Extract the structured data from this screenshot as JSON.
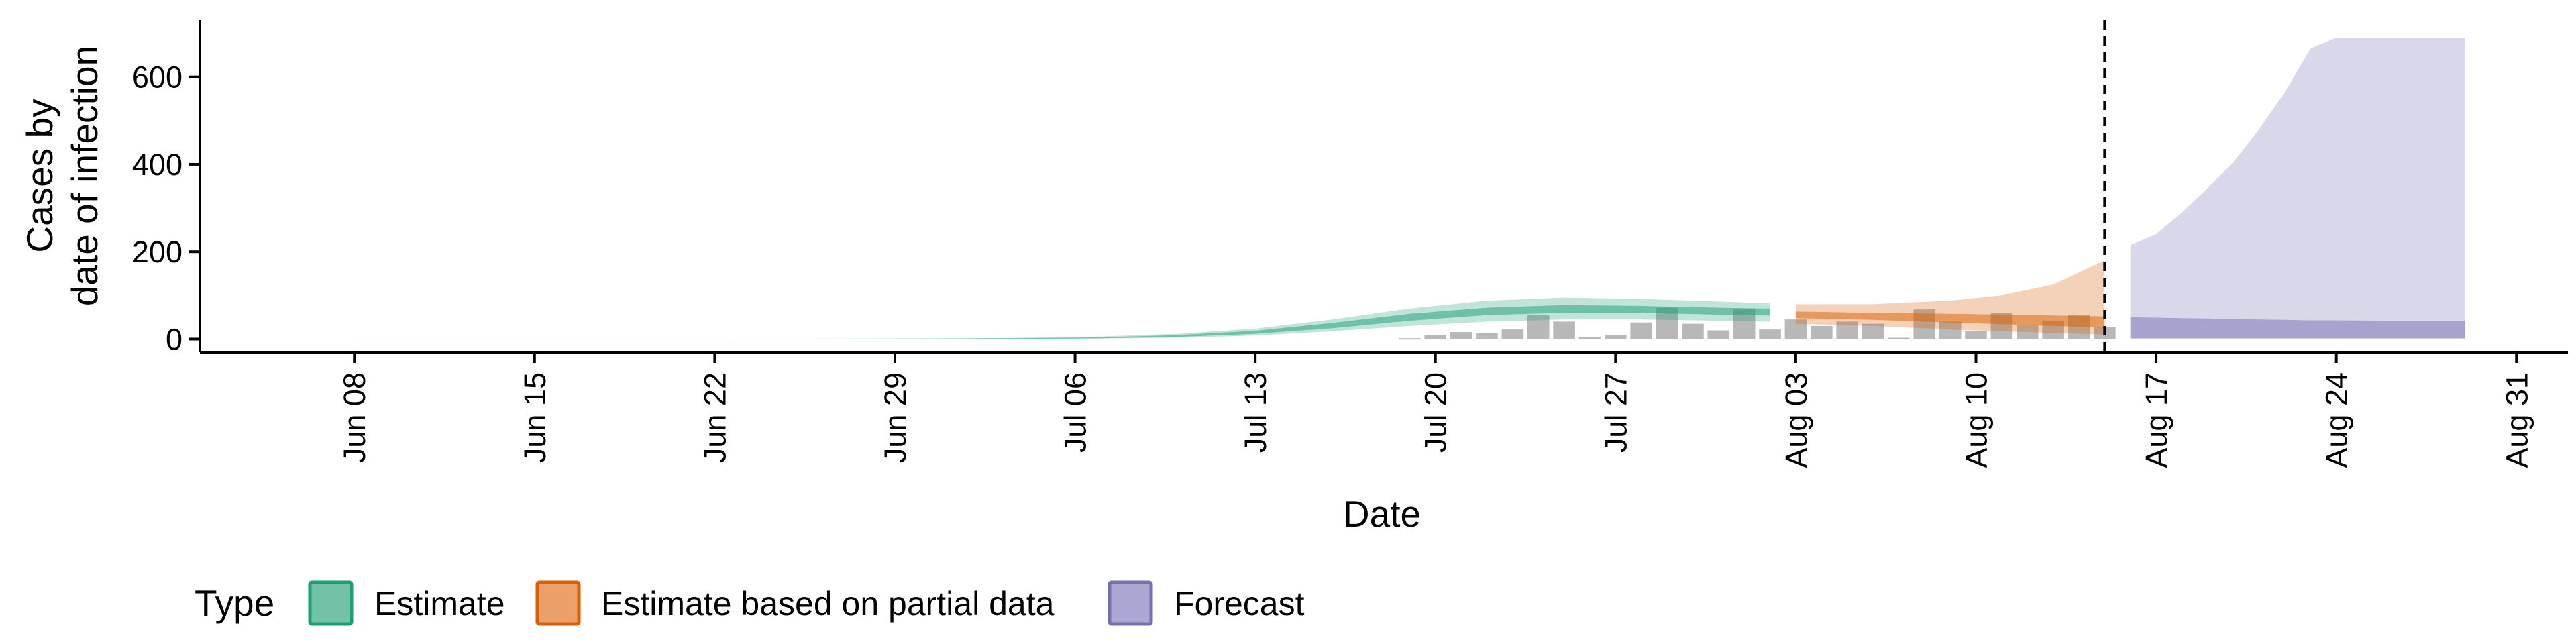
{
  "chart_data": {
    "type": "area",
    "xlabel": "Date",
    "ylabel": [
      "Cases by",
      "date of infection"
    ],
    "x_range": [
      "2020-06-02",
      "2020-09-02"
    ],
    "ylim": [
      -30,
      730
    ],
    "y_ticks": [
      0,
      200,
      400,
      600
    ],
    "x_ticks": [
      {
        "date": "2020-06-08",
        "label": "Jun 08"
      },
      {
        "date": "2020-06-15",
        "label": "Jun 15"
      },
      {
        "date": "2020-06-22",
        "label": "Jun 22"
      },
      {
        "date": "2020-06-29",
        "label": "Jun 29"
      },
      {
        "date": "2020-07-06",
        "label": "Jul 06"
      },
      {
        "date": "2020-07-13",
        "label": "Jul 13"
      },
      {
        "date": "2020-07-20",
        "label": "Jul 20"
      },
      {
        "date": "2020-07-27",
        "label": "Jul 27"
      },
      {
        "date": "2020-08-03",
        "label": "Aug 03"
      },
      {
        "date": "2020-08-10",
        "label": "Aug 10"
      },
      {
        "date": "2020-08-17",
        "label": "Aug 17"
      },
      {
        "date": "2020-08-24",
        "label": "Aug 24"
      },
      {
        "date": "2020-08-31",
        "label": "Aug 31"
      }
    ],
    "vline_date": "2020-08-15",
    "grid": false,
    "legend": {
      "position": "bottom",
      "title": "Type",
      "items": [
        {
          "label": "Estimate",
          "fill": "#73c2a7",
          "stroke": "#1b9e77"
        },
        {
          "label": "Estimate based on partial data",
          "fill": "#eba06a",
          "stroke": "#d95f02"
        },
        {
          "label": "Forecast",
          "fill": "#aca7d2",
          "stroke": "#7570b3"
        }
      ]
    },
    "observed_cases": {
      "color": "#a0a0a0",
      "points": [
        {
          "date": "2020-07-19",
          "y": 2
        },
        {
          "date": "2020-07-20",
          "y": 10
        },
        {
          "date": "2020-07-21",
          "y": 16
        },
        {
          "date": "2020-07-22",
          "y": 14
        },
        {
          "date": "2020-07-23",
          "y": 22
        },
        {
          "date": "2020-07-24",
          "y": 55
        },
        {
          "date": "2020-07-25",
          "y": 40
        },
        {
          "date": "2020-07-26",
          "y": 5
        },
        {
          "date": "2020-07-27",
          "y": 10
        },
        {
          "date": "2020-07-28",
          "y": 38
        },
        {
          "date": "2020-07-29",
          "y": 72
        },
        {
          "date": "2020-07-30",
          "y": 35
        },
        {
          "date": "2020-07-31",
          "y": 20
        },
        {
          "date": "2020-08-01",
          "y": 68
        },
        {
          "date": "2020-08-02",
          "y": 22
        },
        {
          "date": "2020-08-03",
          "y": 45
        },
        {
          "date": "2020-08-04",
          "y": 30
        },
        {
          "date": "2020-08-05",
          "y": 40
        },
        {
          "date": "2020-08-06",
          "y": 35
        },
        {
          "date": "2020-08-07",
          "y": 3
        },
        {
          "date": "2020-08-08",
          "y": 68
        },
        {
          "date": "2020-08-09",
          "y": 40
        },
        {
          "date": "2020-08-10",
          "y": 18
        },
        {
          "date": "2020-08-11",
          "y": 60
        },
        {
          "date": "2020-08-12",
          "y": 32
        },
        {
          "date": "2020-08-13",
          "y": 42
        },
        {
          "date": "2020-08-14",
          "y": 55
        },
        {
          "date": "2020-08-15",
          "y": 28
        }
      ]
    },
    "series": [
      {
        "name": "Estimate",
        "fill": "#1b9e77",
        "points": [
          {
            "date": "2020-06-06",
            "outer": [
              0,
              0
            ],
            "inner": [
              0,
              0
            ]
          },
          {
            "date": "2020-06-20",
            "outer": [
              0,
              0.5
            ],
            "inner": [
              0,
              0.3
            ]
          },
          {
            "date": "2020-06-30",
            "outer": [
              0,
              1
            ],
            "inner": [
              0,
              1
            ]
          },
          {
            "date": "2020-07-04",
            "outer": [
              0,
              3
            ],
            "inner": [
              0.5,
              2
            ]
          },
          {
            "date": "2020-07-07",
            "outer": [
              1,
              6
            ],
            "inner": [
              2,
              4
            ]
          },
          {
            "date": "2020-07-10",
            "outer": [
              3,
              12
            ],
            "inner": [
              5,
              9
            ]
          },
          {
            "date": "2020-07-13",
            "outer": [
              8,
              24
            ],
            "inner": [
              12,
              19
            ]
          },
          {
            "date": "2020-07-16",
            "outer": [
              18,
              45
            ],
            "inner": [
              25,
              37
            ]
          },
          {
            "date": "2020-07-19",
            "outer": [
              30,
              70
            ],
            "inner": [
              42,
              58
            ]
          },
          {
            "date": "2020-07-22",
            "outer": [
              40,
              88
            ],
            "inner": [
              55,
              72
            ]
          },
          {
            "date": "2020-07-25",
            "outer": [
              45,
              95
            ],
            "inner": [
              60,
              78
            ]
          },
          {
            "date": "2020-07-28",
            "outer": [
              45,
              92
            ],
            "inner": [
              60,
              76
            ]
          },
          {
            "date": "2020-07-31",
            "outer": [
              42,
              86
            ],
            "inner": [
              56,
              72
            ]
          },
          {
            "date": "2020-08-02",
            "outer": [
              40,
              82
            ],
            "inner": [
              54,
              70
            ]
          }
        ]
      },
      {
        "name": "Estimate based on partial data",
        "fill": "#d95f02",
        "points": [
          {
            "date": "2020-08-03",
            "outer": [
              35,
              80
            ],
            "inner": [
              48,
              63
            ]
          },
          {
            "date": "2020-08-06",
            "outer": [
              30,
              80
            ],
            "inner": [
              44,
              60
            ]
          },
          {
            "date": "2020-08-09",
            "outer": [
              22,
              88
            ],
            "inner": [
              38,
              58
            ]
          },
          {
            "date": "2020-08-11",
            "outer": [
              18,
              100
            ],
            "inner": [
              34,
              56
            ]
          },
          {
            "date": "2020-08-13",
            "outer": [
              14,
              125
            ],
            "inner": [
              30,
              54
            ]
          },
          {
            "date": "2020-08-15",
            "outer": [
              10,
              180
            ],
            "inner": [
              26,
              52
            ]
          }
        ]
      },
      {
        "name": "Forecast",
        "fill": "#7570b3",
        "points": [
          {
            "date": "2020-08-16",
            "outer": [
              0,
              215
            ],
            "inner": [
              2,
              50
            ]
          },
          {
            "date": "2020-08-17",
            "outer": [
              0,
              240
            ],
            "inner": [
              2,
              49
            ]
          },
          {
            "date": "2020-08-18",
            "outer": [
              0,
              290
            ],
            "inner": [
              2,
              48
            ]
          },
          {
            "date": "2020-08-19",
            "outer": [
              0,
              345
            ],
            "inner": [
              2,
              47
            ]
          },
          {
            "date": "2020-08-20",
            "outer": [
              0,
              405
            ],
            "inner": [
              2,
              46
            ]
          },
          {
            "date": "2020-08-21",
            "outer": [
              0,
              480
            ],
            "inner": [
              2,
              45
            ]
          },
          {
            "date": "2020-08-22",
            "outer": [
              0,
              565
            ],
            "inner": [
              2,
              44
            ]
          },
          {
            "date": "2020-08-23",
            "outer": [
              0,
              665
            ],
            "inner": [
              2,
              43
            ]
          },
          {
            "date": "2020-08-24",
            "outer": [
              0,
              690
            ],
            "inner": [
              2,
              43
            ]
          },
          {
            "date": "2020-08-26",
            "outer": [
              0,
              690
            ],
            "inner": [
              2,
              42
            ]
          },
          {
            "date": "2020-08-29",
            "outer": [
              0,
              690
            ],
            "inner": [
              2,
              42
            ]
          }
        ]
      }
    ]
  }
}
